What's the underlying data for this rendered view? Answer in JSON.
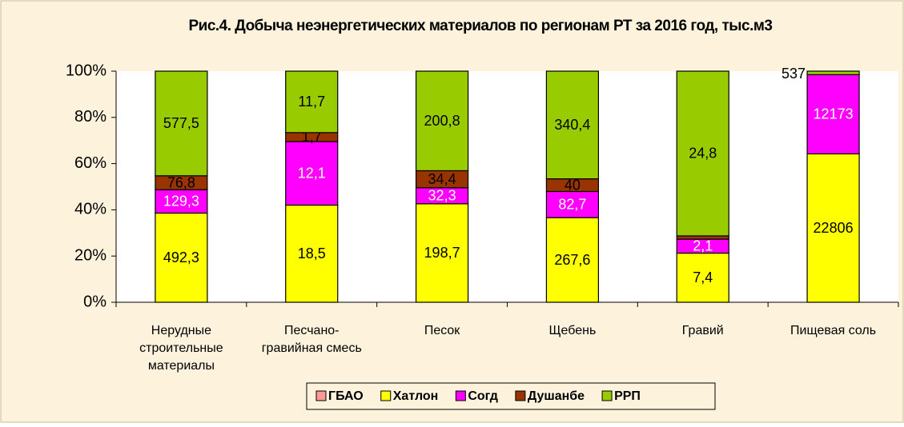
{
  "chart_data": {
    "type": "stacked_bar_percent",
    "title": "Рис.4. Добыча неэнергетических материалов по регионам РТ за 2016 год, тыс.м3",
    "categories": [
      "Нерудные\nстроительные\nматериалы",
      "Песчано-\nгравийная смесь",
      "Песок",
      "Щебень",
      "Гравий",
      "Пищевая соль"
    ],
    "series": [
      {
        "name": "ГБАО",
        "color": "#ff9999",
        "label_color": "#000000",
        "values": [
          0,
          0,
          0,
          0,
          0,
          0
        ],
        "value_labels": [
          null,
          null,
          null,
          null,
          null,
          null
        ]
      },
      {
        "name": "Хатлон",
        "color": "#ffff00",
        "label_color": "#000000",
        "values": [
          492.3,
          18.5,
          198.7,
          267.6,
          7.4,
          22806
        ],
        "value_labels": [
          "492,3",
          "18,5",
          "198,7",
          "267,6",
          "7,4",
          "22806"
        ]
      },
      {
        "name": "Согд",
        "color": "#ff00ff",
        "label_color": "#ffffff",
        "values": [
          129.3,
          12.1,
          32.3,
          82.7,
          2.1,
          12173
        ],
        "value_labels": [
          "129,3",
          "12,1",
          "32,3",
          "82,7",
          "2,1",
          "12173"
        ]
      },
      {
        "name": "Душанбе",
        "color": "#993300",
        "label_color": "#000000",
        "values": [
          76.8,
          1.7,
          34.4,
          40,
          0.5,
          0
        ],
        "value_labels": [
          "76,8",
          "1,7",
          "34,4",
          "40",
          null,
          null
        ]
      },
      {
        "name": "РРП",
        "color": "#99cc00",
        "label_color": "#000000",
        "values": [
          577.5,
          11.7,
          200.8,
          340.4,
          24.8,
          537
        ],
        "value_labels": [
          "577,5",
          "11,7",
          "200,8",
          "340,4",
          "24,8",
          "537"
        ]
      }
    ],
    "ylim": [
      0,
      100
    ],
    "yticks": [
      {
        "value": 0,
        "label": "0%"
      },
      {
        "value": 20,
        "label": "20%"
      },
      {
        "value": 40,
        "label": "40%"
      },
      {
        "value": 60,
        "label": "60%"
      },
      {
        "value": 80,
        "label": "80%"
      },
      {
        "value": 100,
        "label": "100%"
      }
    ],
    "legend": "bottom"
  }
}
